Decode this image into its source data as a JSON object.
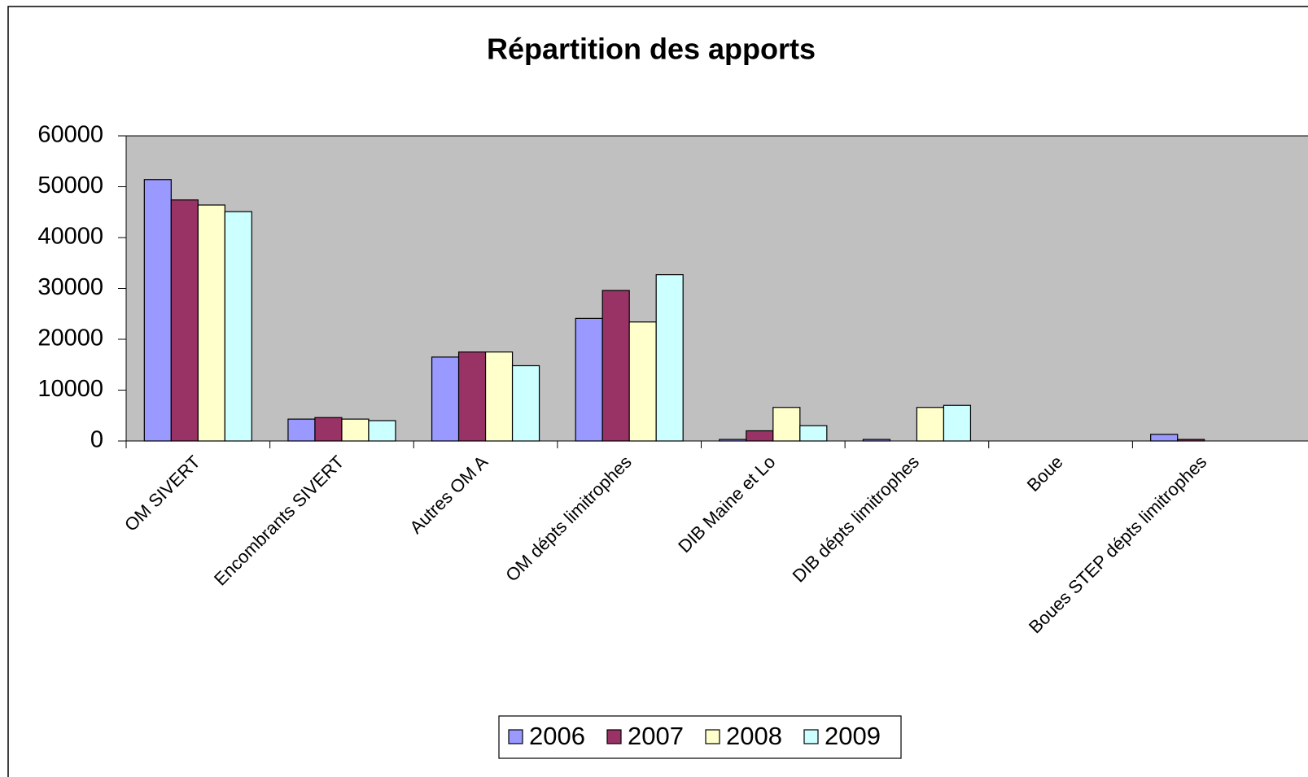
{
  "chart_data": {
    "type": "bar",
    "title": "Répartition des apports",
    "categories": [
      "OM SIVERT",
      "Encombrants SIVERT",
      "Autres OM A",
      "OM dépts limitrophes",
      "DIB Maine et Lo",
      "DIB dépts limitrophes",
      "Boue",
      "Boues STEP dépts limitrophes"
    ],
    "series": [
      {
        "name": "2006",
        "color": "#9999ff",
        "values": [
          51400,
          4300,
          16500,
          24100,
          300,
          300,
          null,
          1300
        ]
      },
      {
        "name": "2007",
        "color": "#993366",
        "values": [
          47400,
          4600,
          17500,
          29600,
          2000,
          null,
          null,
          300
        ]
      },
      {
        "name": "2008",
        "color": "#ffffcc",
        "values": [
          46400,
          4300,
          17500,
          23400,
          6600,
          6600,
          null,
          null
        ]
      },
      {
        "name": "2009",
        "color": "#ccffff",
        "values": [
          45100,
          4000,
          14800,
          32700,
          3000,
          7000,
          null,
          null
        ]
      }
    ],
    "ylim": [
      0,
      60000
    ],
    "yticks": [
      0,
      10000,
      20000,
      30000,
      40000,
      50000,
      60000
    ],
    "plot_background": "#c0c0c0",
    "legend": "bottom"
  }
}
